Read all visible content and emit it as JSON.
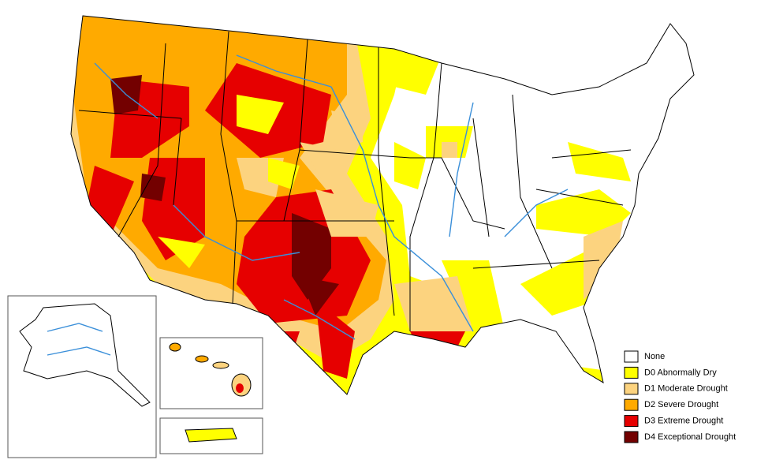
{
  "legend": {
    "items": [
      {
        "label": "None",
        "color": "#ffffff"
      },
      {
        "label": "D0 Abnormally Dry",
        "color": "#ffff00"
      },
      {
        "label": "D1 Moderate Drought",
        "color": "#fcd37f"
      },
      {
        "label": "D2 Severe Drought",
        "color": "#ffaa00"
      },
      {
        "label": "D3 Extreme Drought",
        "color": "#e60000"
      },
      {
        "label": "D4 Exceptional Drought",
        "color": "#730000"
      }
    ]
  }
}
